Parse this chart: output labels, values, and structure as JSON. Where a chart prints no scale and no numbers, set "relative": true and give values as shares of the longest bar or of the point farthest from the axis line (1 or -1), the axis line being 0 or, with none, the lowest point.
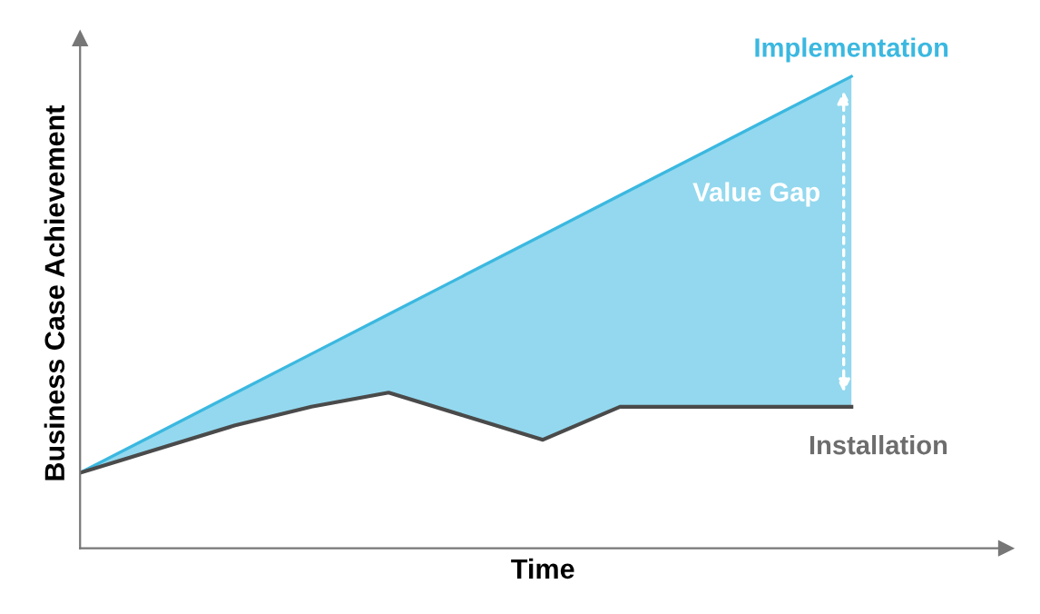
{
  "chart_data": {
    "type": "line",
    "relative": true,
    "xlabel": "Time",
    "ylabel": "Business Case Achievement",
    "categories": [
      null,
      null,
      null,
      null,
      null,
      null,
      null,
      null,
      null,
      null,
      null
    ],
    "series": [
      {
        "name": "Implementation",
        "color": "#3bb8e0",
        "type": "area",
        "values": [
          0.16,
          0.244,
          0.328,
          0.412,
          0.496,
          0.58,
          0.664,
          0.748,
          0.832,
          0.916,
          1.0
        ]
      },
      {
        "name": "Installation",
        "color": "#4a4a4a",
        "values": [
          0.16,
          0.21,
          0.26,
          0.3,
          0.33,
          0.28,
          0.23,
          0.3,
          0.3,
          0.3,
          0.3
        ]
      }
    ],
    "annotations": [
      "Value Gap"
    ],
    "legend": false
  }
}
